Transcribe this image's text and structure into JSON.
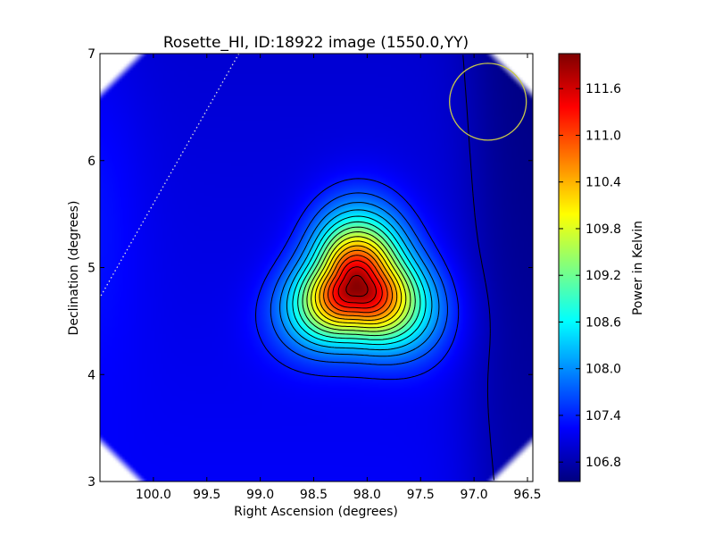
{
  "chart_data": {
    "type": "heatmap",
    "title": "Rosette_HI, ID:18922 image (1550.0,YY)",
    "xlabel": "Right Ascension (degrees)",
    "ylabel": "Declination (degrees)",
    "xlim": [
      100.5,
      96.45
    ],
    "ylim": [
      3,
      7
    ],
    "x_ticks": [
      100.0,
      99.5,
      99.0,
      98.5,
      98.0,
      97.5,
      97.0,
      96.5
    ],
    "x_tick_labels": [
      "100.0",
      "99.5",
      "99.0",
      "98.5",
      "98.0",
      "97.5",
      "97.0",
      "96.5"
    ],
    "y_ticks": [
      3,
      4,
      5,
      6,
      7
    ],
    "y_tick_labels": [
      "3",
      "4",
      "5",
      "6",
      "7"
    ],
    "colorbar": {
      "label": "Power in Kelvin",
      "range": [
        106.55,
        112.05
      ],
      "ticks": [
        106.8,
        107.4,
        108.0,
        108.6,
        109.2,
        109.8,
        110.4,
        111.0,
        111.6
      ],
      "tick_labels": [
        "106.8",
        "107.4",
        "108.0",
        "108.6",
        "109.2",
        "109.8",
        "110.4",
        "111.0",
        "111.6"
      ],
      "colormap": "jet"
    },
    "peak": {
      "ra": 98.1,
      "dec": 4.82,
      "value": 112.0
    },
    "background_level": 107.1,
    "contours": "black, spaced 0.3 K around the peak",
    "beam_circle": {
      "ra": 96.87,
      "dec": 6.55,
      "color": "#c8c84a"
    },
    "dotted_line": {
      "from": [
        99.2,
        7.0
      ],
      "to": [
        100.5,
        4.72
      ],
      "color": "#dddddd"
    }
  }
}
